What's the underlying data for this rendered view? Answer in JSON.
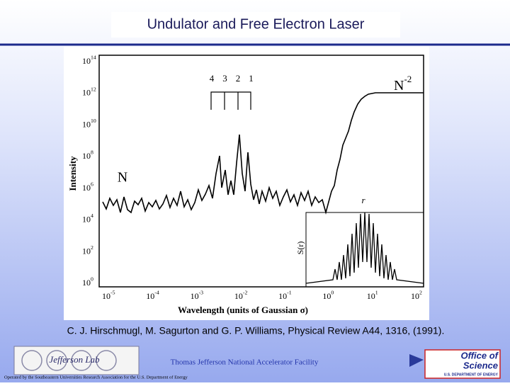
{
  "header": {
    "title": "Undulator and Free Electron Laser"
  },
  "figure": {
    "y_label": "Intensity",
    "x_label": "Wavelength (units of Gaussian σ)",
    "y_ticks": [
      {
        "base": "10",
        "exp": "14"
      },
      {
        "base": "10",
        "exp": "12"
      },
      {
        "base": "10",
        "exp": "10"
      },
      {
        "base": "10",
        "exp": "8"
      },
      {
        "base": "10",
        "exp": "6"
      },
      {
        "base": "10",
        "exp": "4"
      },
      {
        "base": "10",
        "exp": "2"
      },
      {
        "base": "10",
        "exp": "0"
      }
    ],
    "x_ticks": [
      {
        "base": "10",
        "exp": "-5"
      },
      {
        "base": "10",
        "exp": "-4"
      },
      {
        "base": "10",
        "exp": "-3"
      },
      {
        "base": "10",
        "exp": "-2"
      },
      {
        "base": "10",
        "exp": "-1"
      },
      {
        "base": "10",
        "exp": "0"
      },
      {
        "base": "10",
        "exp": "1"
      },
      {
        "base": "10",
        "exp": "2"
      }
    ],
    "peak_labels": [
      "4",
      "3",
      "2",
      "1"
    ],
    "low_label": "N",
    "high_label": {
      "base": "N",
      "exp": "-2"
    },
    "inset_x_label": "r",
    "inset_y_label": "S(r)"
  },
  "caption": "C. J. Hirschmugl, M. Sagurton and G. P. Williams, Physical Review A44, 1316, (1991).",
  "footer": {
    "lab_logo": "Jefferson Lab",
    "facility": "Thomas Jefferson National Accelerator Facility",
    "operated_by": "Operated by the Southeastern Universities Research Association for the U.S. Department of Energy",
    "office_line1": "Office of",
    "office_line2": "Science",
    "office_line3": "U.S. DEPARTMENT OF ENERGY"
  }
}
